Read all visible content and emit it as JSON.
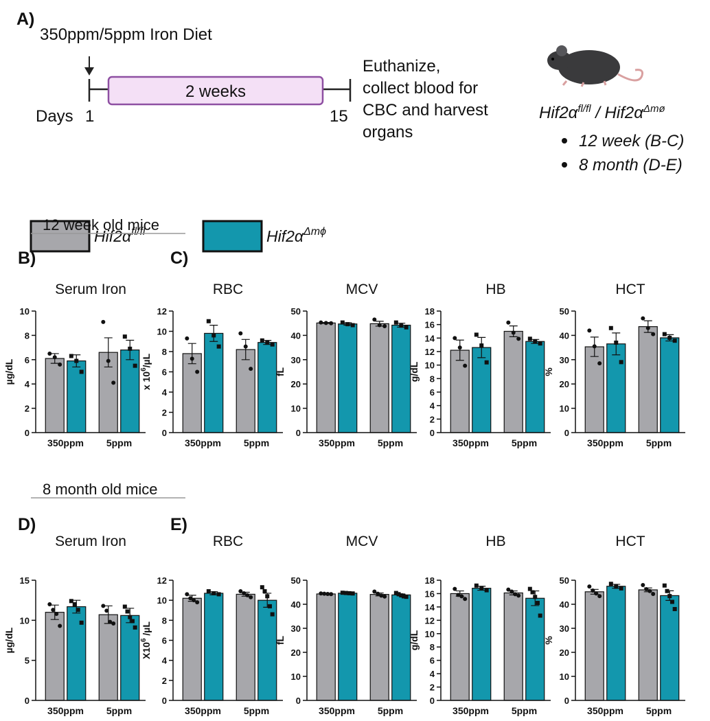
{
  "panel_a": {
    "label": "A)",
    "diet": "350ppm/5ppm Iron Diet",
    "duration": "2 weeks",
    "days": "Days",
    "day_start": "1",
    "day_end": "15",
    "outcome": [
      "Euthanize,",
      "collect blood for",
      "CBC and harvest",
      "organs"
    ],
    "genotype": {
      "a": "Hif2α",
      "a_sup": "fl/fl",
      "sep": " / Hif2α",
      "b_sup": "Δmø"
    },
    "bullets": [
      "12 week (B-C)",
      "8 month (D-E)"
    ]
  },
  "legend": [
    {
      "name": "Hif2α",
      "sup": "fl/fl",
      "color": "#a7a7ab"
    },
    {
      "name": "Hif2α",
      "sup": "Δmϕ",
      "color": "#1397ad"
    }
  ],
  "sections": [
    "12 week old mice",
    "8 month old mice"
  ],
  "panel_labels": [
    "B)",
    "C)",
    "D)",
    "E)"
  ],
  "chart_data": [
    {
      "type": "bar",
      "title": "Serum Iron",
      "ylabel": "µg/dL",
      "categories": [
        "350ppm",
        "5ppm"
      ],
      "ylim": [
        0,
        10
      ],
      "yticks": [
        0,
        2,
        4,
        6,
        8,
        10
      ],
      "series": [
        {
          "color": "#a7a7ab",
          "values": [
            6.1,
            6.6
          ],
          "errors": [
            0.4,
            1.2
          ],
          "points": [
            [
              6.5,
              6.2,
              5.6
            ],
            [
              9.1,
              5.9,
              4.1
            ]
          ]
        },
        {
          "color": "#1397ad",
          "values": [
            5.9,
            6.8
          ],
          "errors": [
            0.5,
            0.8
          ],
          "points": [
            [
              6.3,
              5.9,
              5.0
            ],
            [
              7.9,
              6.9,
              5.5
            ]
          ]
        }
      ]
    },
    {
      "type": "bar",
      "title": "RBC",
      "ylabel": {
        "text": "x 10",
        "sup": "6",
        "after": "/µL"
      },
      "categories": [
        "350ppm",
        "5ppm"
      ],
      "ylim": [
        0,
        12
      ],
      "yticks": [
        0,
        2,
        4,
        6,
        8,
        10,
        12
      ],
      "series": [
        {
          "color": "#a7a7ab",
          "values": [
            7.8,
            8.2
          ],
          "errors": [
            1.0,
            1.0
          ],
          "points": [
            [
              9.3,
              7.3,
              6.0
            ],
            [
              9.8,
              8.5,
              6.3
            ]
          ]
        },
        {
          "color": "#1397ad",
          "values": [
            9.8,
            8.9
          ],
          "errors": [
            0.8,
            0.2
          ],
          "points": [
            [
              11.0,
              9.6,
              8.5
            ],
            [
              9.1,
              8.9,
              8.7
            ]
          ]
        }
      ]
    },
    {
      "type": "bar",
      "title": "MCV",
      "ylabel": "fL",
      "categories": [
        "350ppm",
        "5ppm"
      ],
      "ylim": [
        0,
        50
      ],
      "yticks": [
        0,
        10,
        20,
        30,
        40,
        50
      ],
      "series": [
        {
          "color": "#a7a7ab",
          "values": [
            45.1,
            44.8
          ],
          "errors": [
            0.2,
            1.0
          ],
          "points": [
            [
              45.3,
              45.1,
              45.0
            ],
            [
              46.5,
              44.2,
              43.8
            ]
          ]
        },
        {
          "color": "#1397ad",
          "values": [
            44.7,
            44.2
          ],
          "errors": [
            0.5,
            0.8
          ],
          "points": [
            [
              45.3,
              44.6,
              44.2
            ],
            [
              45.3,
              44.0,
              43.3
            ]
          ]
        }
      ]
    },
    {
      "type": "bar",
      "title": "HB",
      "ylabel": "g/dL",
      "categories": [
        "350ppm",
        "5ppm"
      ],
      "ylim": [
        0,
        18
      ],
      "yticks": [
        0,
        2,
        4,
        6,
        8,
        10,
        12,
        14,
        16,
        18
      ],
      "series": [
        {
          "color": "#a7a7ab",
          "values": [
            12.2,
            15.0
          ],
          "errors": [
            1.5,
            0.8
          ],
          "points": [
            [
              14.0,
              12.6,
              9.9
            ],
            [
              16.3,
              14.8,
              13.9
            ]
          ]
        },
        {
          "color": "#1397ad",
          "values": [
            12.6,
            13.5
          ],
          "errors": [
            1.5,
            0.3
          ],
          "points": [
            [
              14.5,
              12.9,
              10.4
            ],
            [
              13.9,
              13.5,
              13.2
            ]
          ]
        }
      ]
    },
    {
      "type": "bar",
      "title": "HCT",
      "ylabel": "%",
      "categories": [
        "350ppm",
        "5ppm"
      ],
      "ylim": [
        0,
        50
      ],
      "yticks": [
        0,
        10,
        20,
        30,
        40,
        50
      ],
      "series": [
        {
          "color": "#a7a7ab",
          "values": [
            35.3,
            43.6
          ],
          "errors": [
            4.0,
            2.4
          ],
          "points": [
            [
              42.0,
              35.5,
              28.5
            ],
            [
              47.0,
              43.0,
              40.5
            ]
          ]
        },
        {
          "color": "#1397ad",
          "values": [
            36.5,
            39.0
          ],
          "errors": [
            4.5,
            1.3
          ],
          "points": [
            [
              43.0,
              37.0,
              29.0
            ],
            [
              40.5,
              39.0,
              37.8
            ]
          ]
        }
      ]
    },
    {
      "type": "bar",
      "title": "Serum Iron",
      "ylabel": "µg/dL",
      "categories": [
        "350ppm",
        "5ppm"
      ],
      "ylim": [
        0,
        15
      ],
      "yticks": [
        0,
        5,
        10,
        15
      ],
      "series": [
        {
          "color": "#a7a7ab",
          "values": [
            11.0,
            10.7
          ],
          "errors": [
            0.9,
            1.1
          ],
          "points": [
            [
              12.0,
              11.3,
              10.8,
              9.3
            ],
            [
              11.8,
              11.2,
              9.8,
              9.6
            ]
          ]
        },
        {
          "color": "#1397ad",
          "values": [
            11.7,
            10.6
          ],
          "errors": [
            0.8,
            0.9
          ],
          "points": [
            [
              12.4,
              12.0,
              11.3,
              9.7
            ],
            [
              11.7,
              11.1,
              10.4,
              9.9,
              9.1
            ]
          ]
        }
      ]
    },
    {
      "type": "bar",
      "title": "RBC",
      "ylabel": {
        "text": "X10",
        "sup": "6",
        "after": " /µL"
      },
      "categories": [
        "350ppm",
        "5ppm"
      ],
      "ylim": [
        0,
        12
      ],
      "yticks": [
        0,
        2,
        4,
        6,
        8,
        10,
        12
      ],
      "series": [
        {
          "color": "#a7a7ab",
          "values": [
            10.2,
            10.6
          ],
          "errors": [
            0.3,
            0.2
          ],
          "points": [
            [
              10.6,
              10.2,
              10.0,
              9.8
            ],
            [
              10.9,
              10.7,
              10.5,
              10.3
            ]
          ]
        },
        {
          "color": "#1397ad",
          "values": [
            10.7,
            10.0
          ],
          "errors": [
            0.15,
            0.7
          ],
          "points": [
            [
              10.9,
              10.7,
              10.6
            ],
            [
              11.3,
              10.9,
              10.4,
              9.4,
              8.6
            ]
          ]
        }
      ]
    },
    {
      "type": "bar",
      "title": "MCV",
      "ylabel": "fL",
      "categories": [
        "350ppm",
        "5ppm"
      ],
      "ylim": [
        0,
        50
      ],
      "yticks": [
        0,
        10,
        20,
        30,
        40,
        50
      ],
      "series": [
        {
          "color": "#a7a7ab",
          "values": [
            44.3,
            44.1
          ],
          "errors": [
            0.15,
            0.6
          ],
          "points": [
            [
              44.5,
              44.4,
              44.3,
              44.2
            ],
            [
              45.3,
              44.4,
              43.6,
              43.2
            ]
          ]
        },
        {
          "color": "#1397ad",
          "values": [
            44.6,
            43.9
          ],
          "errors": [
            0.2,
            0.4
          ],
          "points": [
            [
              44.8,
              44.7,
              44.6,
              44.5
            ],
            [
              44.7,
              44.2,
              43.7,
              43.3,
              43.1
            ]
          ]
        }
      ]
    },
    {
      "type": "bar",
      "title": "HB",
      "ylabel": "g/dL",
      "categories": [
        "350ppm",
        "5ppm"
      ],
      "ylim": [
        0,
        18
      ],
      "yticks": [
        0,
        2,
        4,
        6,
        8,
        10,
        12,
        14,
        16,
        18
      ],
      "series": [
        {
          "color": "#a7a7ab",
          "values": [
            16.0,
            16.1
          ],
          "errors": [
            0.4,
            0.3
          ],
          "points": [
            [
              16.7,
              15.8,
              15.6,
              15.2
            ],
            [
              16.6,
              16.3,
              15.9,
              15.7
            ]
          ]
        },
        {
          "color": "#1397ad",
          "values": [
            16.8,
            15.3
          ],
          "errors": [
            0.3,
            1.1
          ],
          "points": [
            [
              17.2,
              16.8,
              16.5
            ],
            [
              16.7,
              16.2,
              15.5,
              14.6,
              12.7
            ]
          ]
        }
      ]
    },
    {
      "type": "bar",
      "title": "HCT",
      "ylabel": "%",
      "categories": [
        "350ppm",
        "5ppm"
      ],
      "ylim": [
        0,
        50
      ],
      "yticks": [
        0,
        10,
        20,
        30,
        40,
        50
      ],
      "series": [
        {
          "color": "#a7a7ab",
          "values": [
            45.2,
            46.0
          ],
          "errors": [
            1.0,
            0.8
          ],
          "points": [
            [
              47.4,
              45.7,
              44.5,
              43.4
            ],
            [
              48.0,
              46.3,
              45.5,
              44.3
            ]
          ]
        },
        {
          "color": "#1397ad",
          "values": [
            47.5,
            43.6
          ],
          "errors": [
            0.8,
            2.0
          ],
          "points": [
            [
              48.5,
              47.3,
              46.6
            ],
            [
              47.8,
              45.5,
              43.4,
              41.0,
              38.0
            ]
          ]
        }
      ]
    }
  ]
}
